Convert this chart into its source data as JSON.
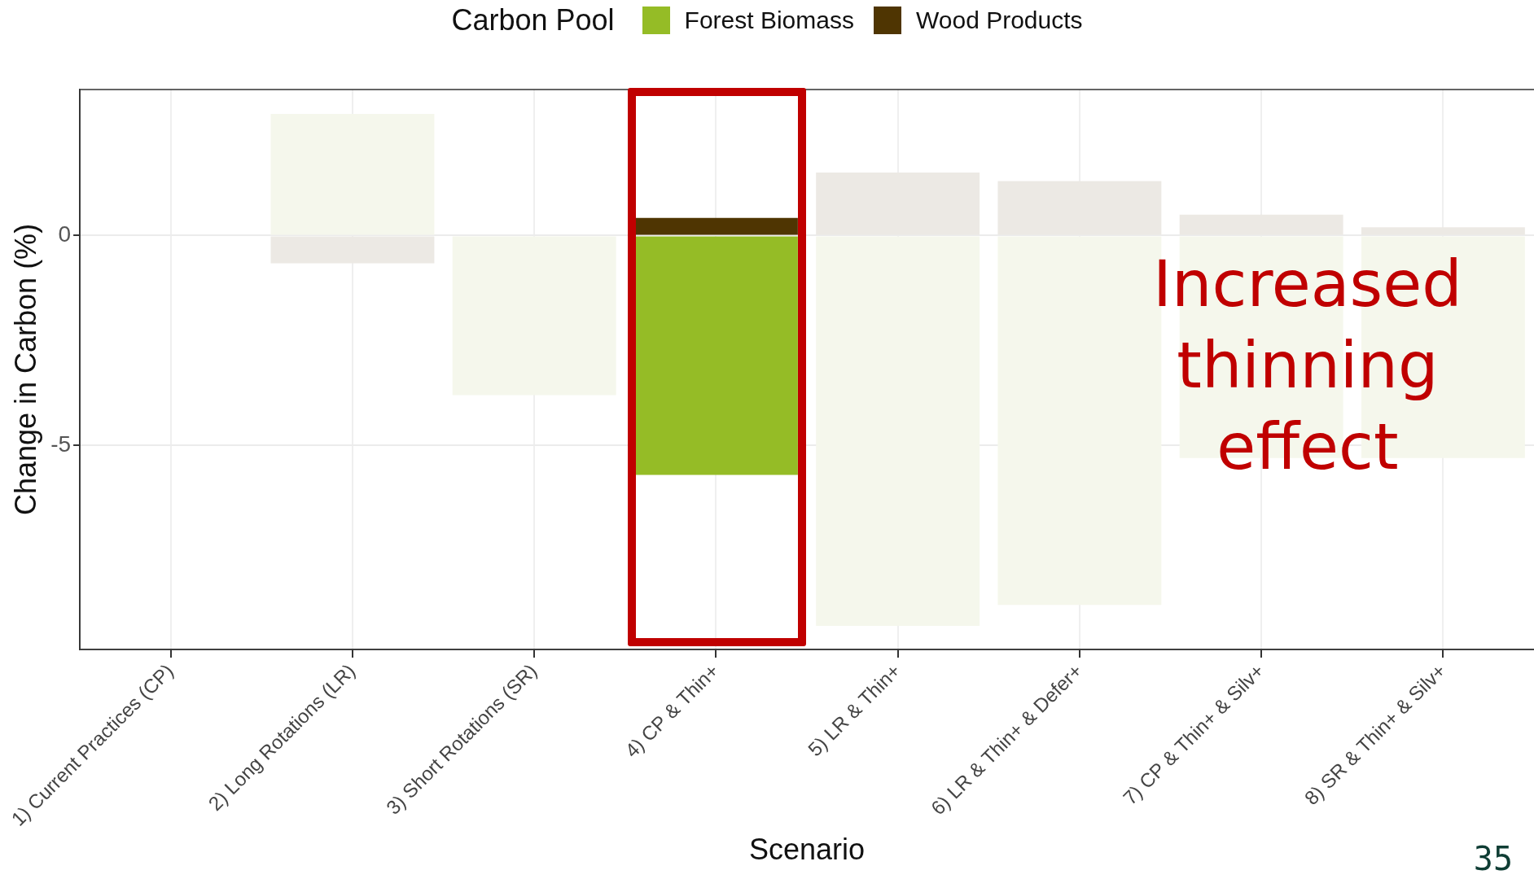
{
  "chart_data": {
    "type": "bar",
    "stacked": true,
    "xlabel": "Scenario",
    "ylabel": "Change in Carbon (%)",
    "legend_title": "Carbon Pool",
    "legend": "top",
    "categories": [
      "1) Current Practices (CP)",
      "2) Long Rotations (LR)",
      "3) Short Rotations (SR)",
      "4) CP & Thin+",
      "5) LR & Thin+",
      "6) LR & Thin+ & Defer+",
      "7) CP & Thin+ & Silv+",
      "8) SR & Thin+ & Silv+"
    ],
    "series": [
      {
        "name": "Forest Biomass",
        "color": "#95bc26",
        "colors": [
          "#f5f7ec",
          "#f5f7ec",
          "#f5f7ec",
          "#95bc26",
          "#f5f7ec",
          "#f5f7ec",
          "#f5f7ec",
          "#f5f7ec"
        ],
        "values": [
          0,
          2.9,
          -3.8,
          -5.7,
          -9.3,
          -8.8,
          -5.3,
          -5.3
        ]
      },
      {
        "name": "Wood Products",
        "color": "#4f3502",
        "colors": [
          "#ece9e4",
          "#ece9e4",
          "#ece9e4",
          "#4f3502",
          "#ece9e4",
          "#ece9e4",
          "#ece9e4",
          "#ece9e4"
        ],
        "values": [
          0,
          -0.66,
          0,
          0.42,
          1.5,
          1.3,
          0.5,
          0.2
        ]
      }
    ],
    "ylim": [
      -9.86,
      3.48
    ],
    "yticks": [
      -5,
      0
    ],
    "grid": true,
    "annotations": [
      "Increased thinning effect",
      "35"
    ]
  }
}
